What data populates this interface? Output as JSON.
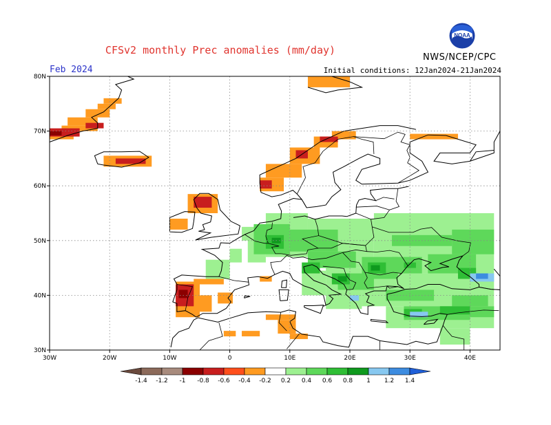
{
  "header": {
    "title": "CFSv2 monthly Prec anomalies (mm/day)",
    "month": "Feb 2024",
    "initial_conditions": "Initial conditions: 12Jan2024-21Jan2024",
    "org": "NWS/NCEP/CPC",
    "logo_text": "NOAA"
  },
  "axes": {
    "lat_labels": [
      "80N",
      "70N",
      "60N",
      "50N",
      "40N",
      "30N"
    ],
    "lon_labels": [
      "30W",
      "20W",
      "10W",
      "0",
      "10E",
      "20E",
      "30E",
      "40E"
    ],
    "lat_values": [
      80,
      70,
      60,
      50,
      40,
      30
    ],
    "lon_values": [
      -30,
      -20,
      -10,
      0,
      10,
      20,
      30,
      40
    ],
    "lon_range": [
      -30,
      45
    ],
    "lat_range": [
      30,
      80
    ]
  },
  "colorbar": {
    "labels": [
      "-1.4",
      "-1.2",
      "-1",
      "-0.8",
      "-0.6",
      "-0.4",
      "-0.2",
      "0.2",
      "0.4",
      "0.6",
      "0.8",
      "1",
      "1.2",
      "1.4"
    ],
    "colors": [
      "#6b4a3d",
      "#8c6a5a",
      "#a88b7d",
      "#8b0000",
      "#c81e1e",
      "#ff4f1c",
      "#ff9b21",
      "#ffffff",
      "#9df091",
      "#5ed85a",
      "#2fbe35",
      "#0f9a1e",
      "#87c8f0",
      "#3d8ce0",
      "#1f5fd8"
    ]
  },
  "anomaly_regions": [
    {
      "name": "greenland-east-coast",
      "color": "#ff9b21"
    },
    {
      "name": "greenland-southeast",
      "color": "#c81e1e"
    },
    {
      "name": "iceland",
      "color": "#c81e1e"
    },
    {
      "name": "norway-coast",
      "color": "#ff9b21"
    },
    {
      "name": "scotland",
      "color": "#c81e1e"
    },
    {
      "name": "iberia-west",
      "color": "#c81e1e"
    },
    {
      "name": "central-europe",
      "color": "#5ed85a"
    },
    {
      "name": "turkey",
      "color": "#5ed85a"
    },
    {
      "name": "caucasus",
      "color": "#3d8ce0"
    }
  ]
}
